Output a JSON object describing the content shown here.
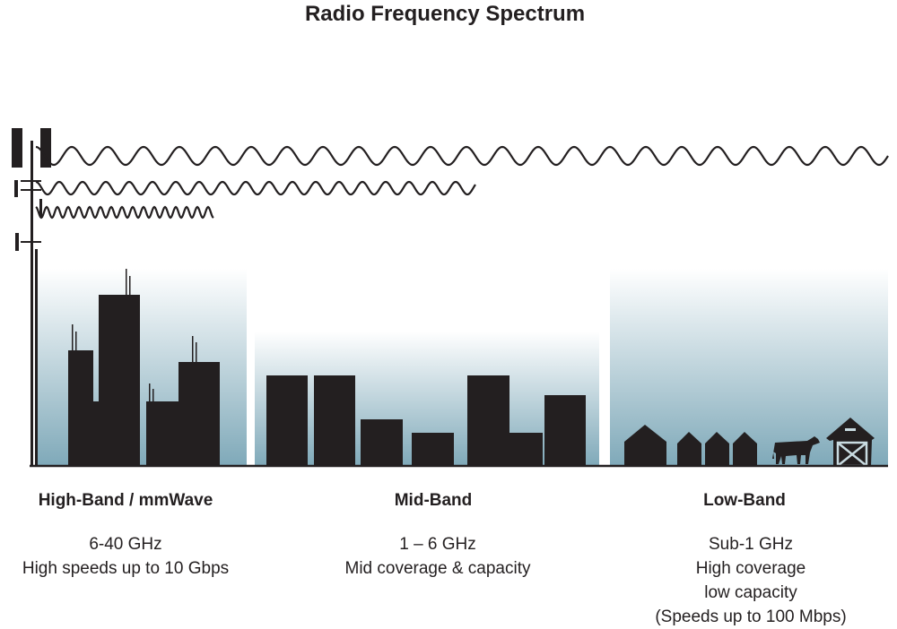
{
  "title": "Radio Frequency Spectrum",
  "colors": {
    "silhouette": "#231f20",
    "sky_bottom": "#7fa9b9",
    "sky_top": "#ffffff"
  },
  "bands": [
    {
      "name": "High-Band / mmWave",
      "lines": [
        "6-40 GHz",
        "High speeds up to 10 Gbps"
      ]
    },
    {
      "name": "Mid-Band",
      "lines": [
        "1 – 6 GHz",
        "Mid coverage & capacity"
      ]
    },
    {
      "name": "Low-Band",
      "lines": [
        "Sub-1 GHz",
        "High coverage",
        "low capacity",
        "(Speeds up to 100 Mbps)"
      ]
    }
  ]
}
